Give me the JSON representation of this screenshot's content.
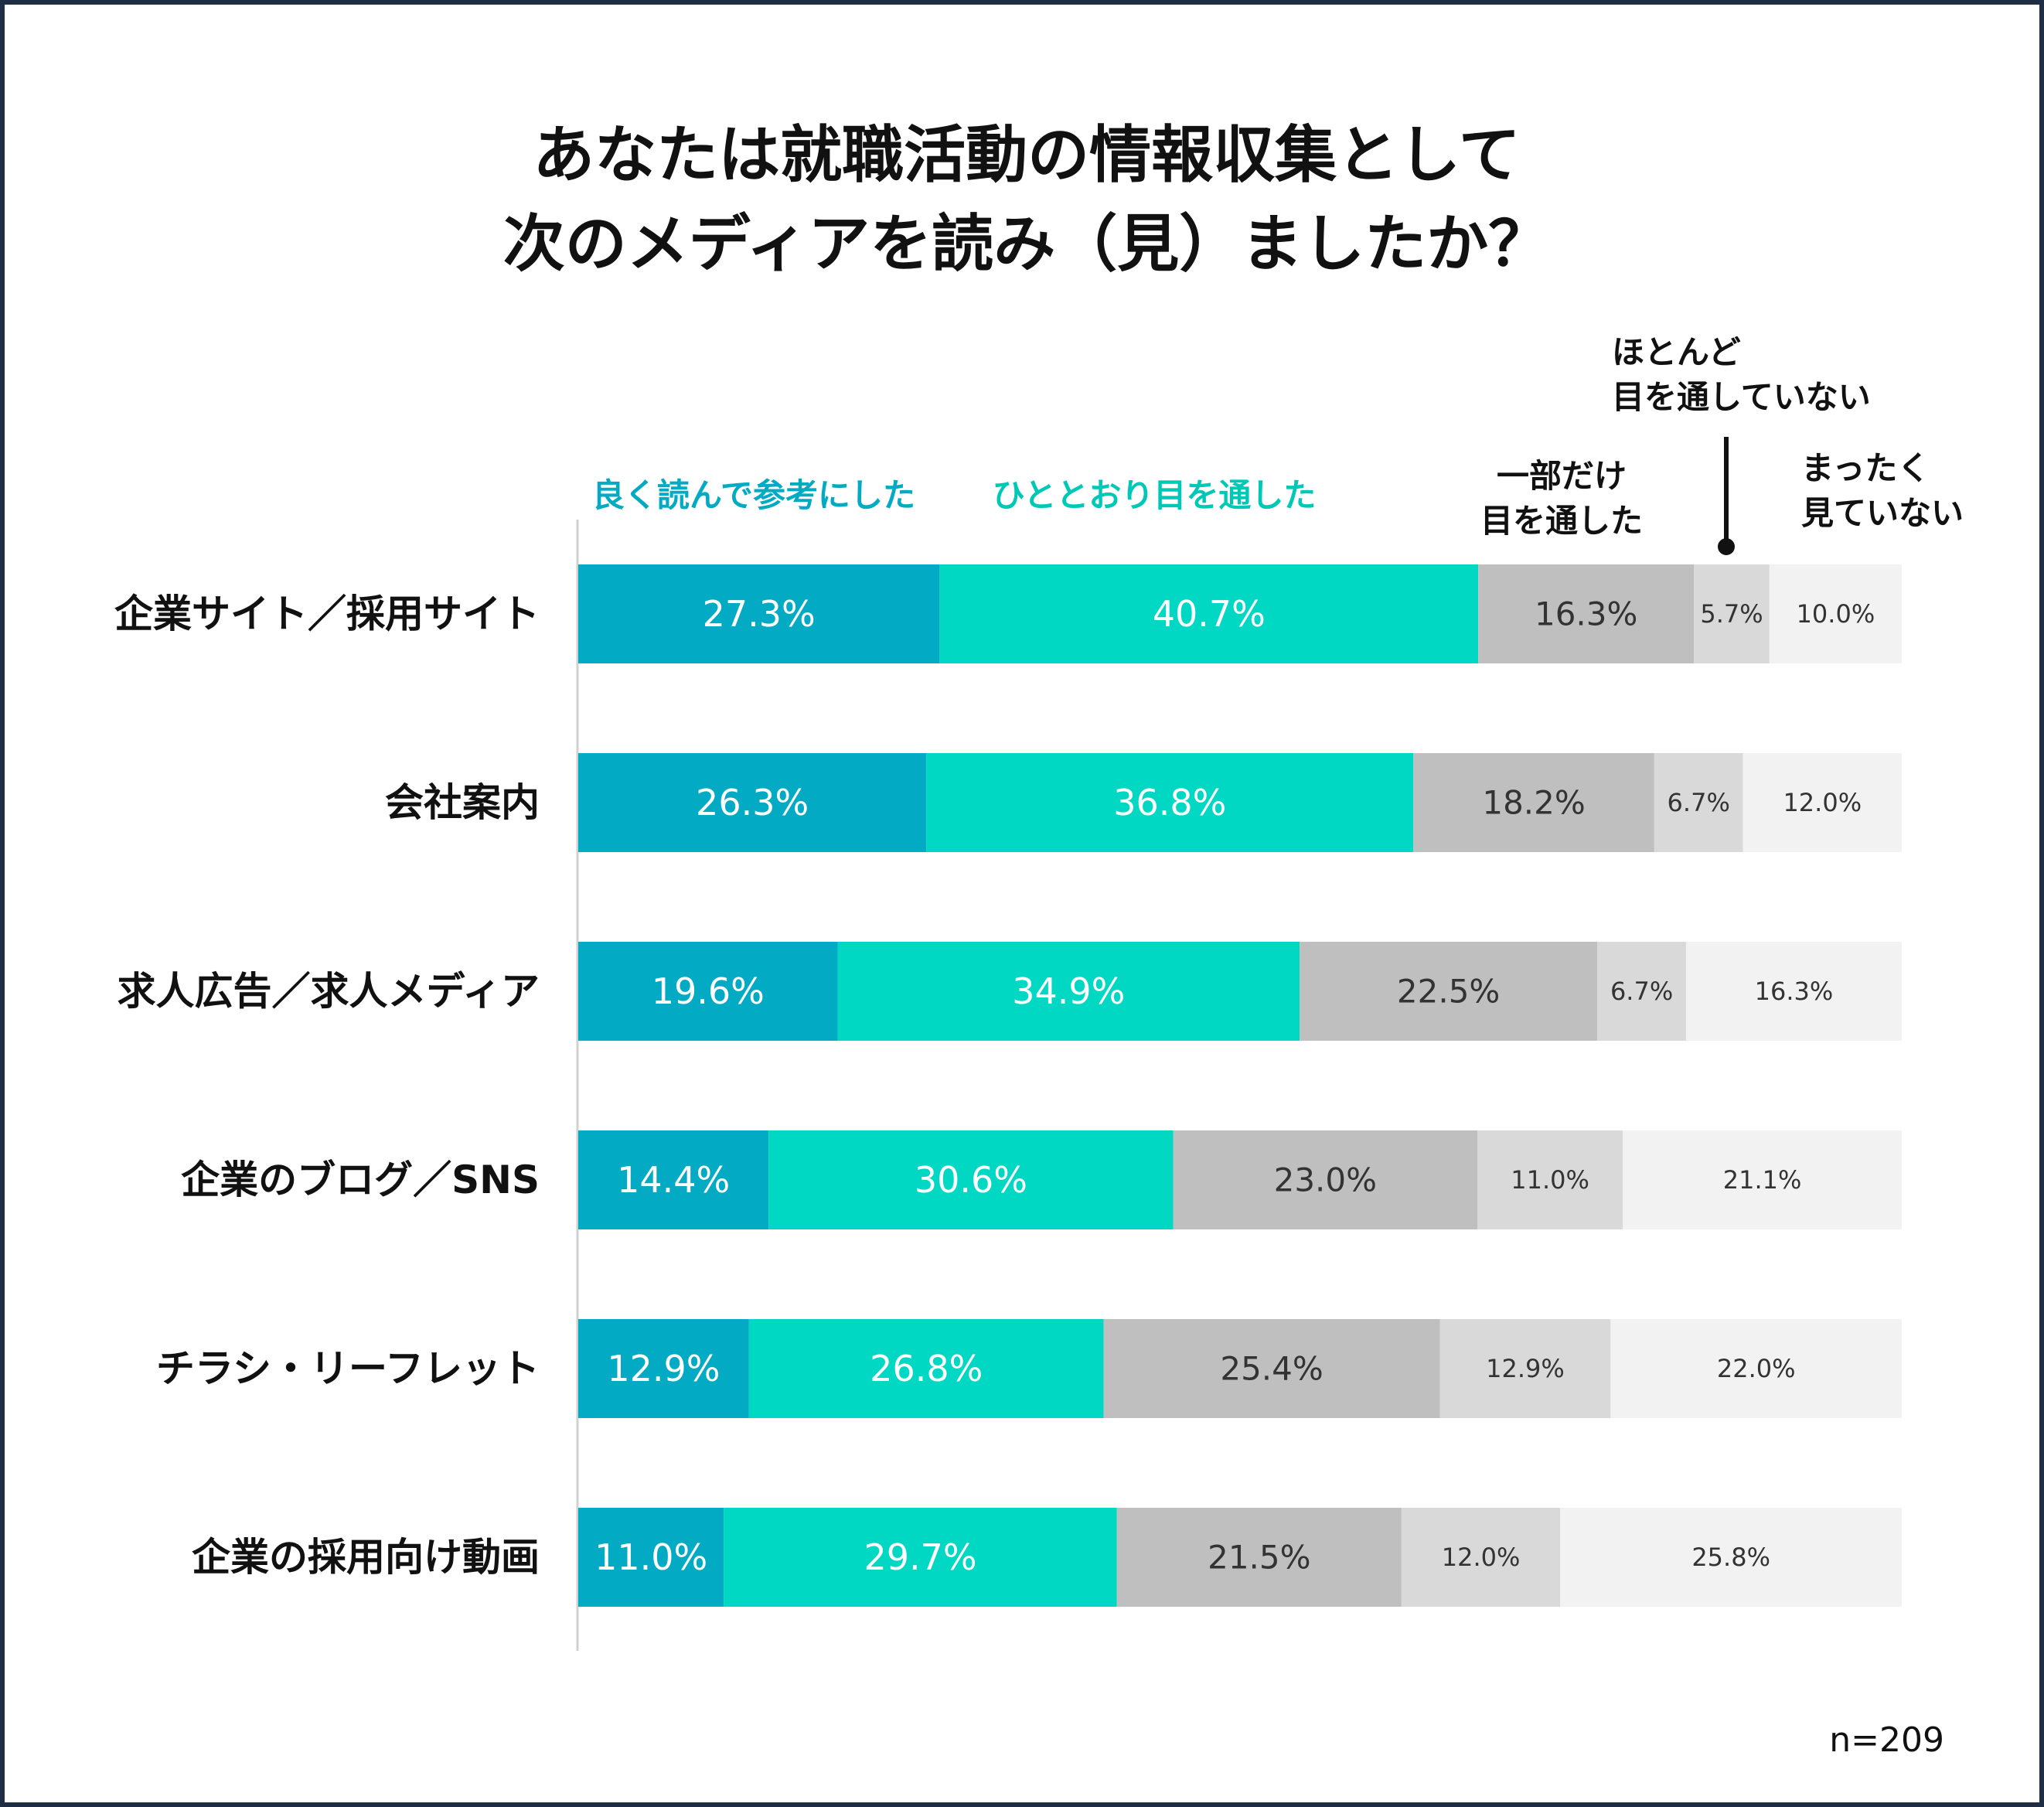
{
  "chart_data": {
    "type": "bar",
    "orientation": "horizontal",
    "stacked": true,
    "title": "あなたは就職活動の情報収集として",
    "subtitle": "次のメディアを読み（見）ましたか？",
    "categories": [
      "企業サイト／採用サイト",
      "会社案内",
      "求人広告／求人メディア",
      "企業のブログ／SNS",
      "チラシ・リーフレット",
      "企業の採用向け動画"
    ],
    "series": [
      {
        "name": "良く読んで参考にした",
        "color": "#02aac3",
        "label_color": "#ffffff",
        "label_weight": "big",
        "values": [
          27.3,
          26.3,
          19.6,
          14.4,
          12.9,
          11.0
        ],
        "labels": [
          "27.3%",
          "26.3%",
          "19.6%",
          "14.4%",
          "12.9%",
          "11.0%"
        ]
      },
      {
        "name": "ひととおり目を通した",
        "color": "#00d8c4",
        "label_color": "#ffffff",
        "label_weight": "big",
        "values": [
          40.7,
          36.8,
          34.9,
          30.6,
          26.8,
          29.7
        ],
        "labels": [
          "40.7%",
          "36.8%",
          "34.9%",
          "30.6%",
          "26.8%",
          "29.7%"
        ]
      },
      {
        "name": "一部だけ\n目を通した",
        "color": "#bfbfbf",
        "label_color": "#333333",
        "label_weight": "mid",
        "values": [
          16.3,
          18.2,
          22.5,
          23.0,
          25.4,
          21.5
        ],
        "labels": [
          "16.3%",
          "18.2%",
          "22.5%",
          "23.0%",
          "25.4%",
          "21.5%"
        ]
      },
      {
        "name": "ほとんど\n目を通していない",
        "color": "#d9d9d9",
        "label_color": "#333333",
        "label_weight": "small",
        "values": [
          5.7,
          6.7,
          6.7,
          11.0,
          12.9,
          12.0
        ],
        "labels": [
          "5.7%",
          "6.7%",
          "6.7%",
          "11.0%",
          "12.9%",
          "12.0%"
        ]
      },
      {
        "name": "まったく\n見ていない",
        "color": "#f2f2f2",
        "label_color": "#333333",
        "label_weight": "small",
        "values": [
          10.0,
          12.0,
          16.3,
          21.1,
          22.0,
          25.8
        ],
        "labels": [
          "10.0%",
          "12.0%",
          "16.3%",
          "21.1%",
          "22.0%",
          "25.8%"
        ]
      }
    ],
    "xlim": [
      0,
      100
    ],
    "legend_position": "top",
    "note": "n=209"
  }
}
